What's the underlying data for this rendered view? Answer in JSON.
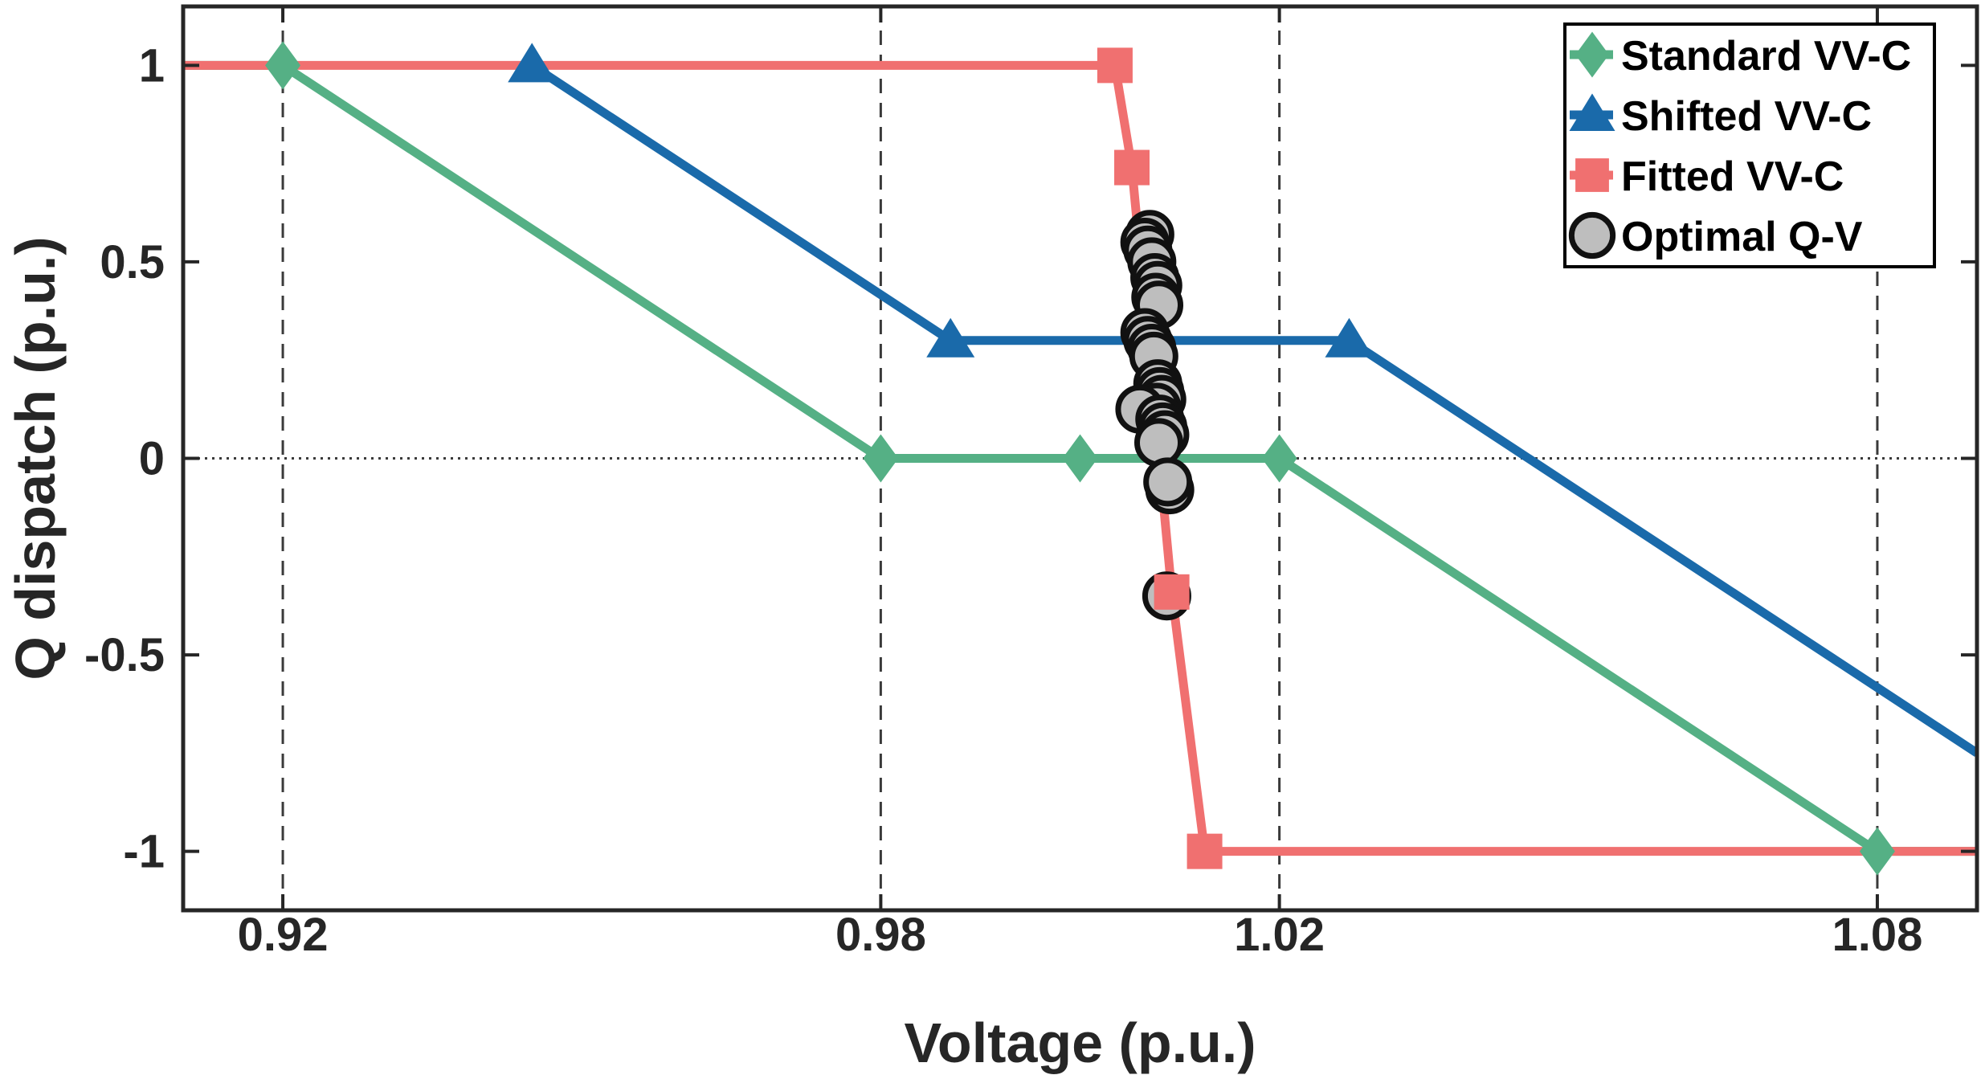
{
  "chart_data": {
    "type": "line",
    "xlabel": "Voltage (p.u.)",
    "ylabel": "Q dispatch (p.u.)",
    "xlim": [
      0.91,
      1.09
    ],
    "ylim": [
      -1.15,
      1.15
    ],
    "xticks": [
      0.92,
      0.98,
      1.02,
      1.08
    ],
    "xtick_labels": [
      "0.92",
      "0.98",
      "1.02",
      "1.08"
    ],
    "yticks": [
      -1,
      -0.5,
      0,
      0.5,
      1
    ],
    "ytick_labels": [
      "-1",
      "-0.5",
      "0",
      "0.5",
      "1"
    ],
    "grid": "vertical dashed at x ticks",
    "zero_line": "dotted at y=0",
    "legend_position": "top-right",
    "series": [
      {
        "name": "Standard VV-C",
        "color": "#55B085",
        "marker": "diamond",
        "points": [
          [
            0.91,
            1.0
          ],
          [
            0.92,
            1.0
          ],
          [
            0.98,
            0.0
          ],
          [
            1.0,
            0.0
          ],
          [
            1.02,
            0.0
          ],
          [
            1.08,
            -1.0
          ],
          [
            1.09,
            -1.0
          ]
        ],
        "marker_points": [
          [
            0.92,
            1.0
          ],
          [
            0.98,
            0.0
          ],
          [
            1.0,
            0.0
          ],
          [
            1.02,
            0.0
          ],
          [
            1.08,
            -1.0
          ]
        ]
      },
      {
        "name": "Shifted VV-C",
        "color": "#1A6AAA",
        "marker": "triangle",
        "points": [
          [
            0.945,
            1.0
          ],
          [
            0.987,
            0.3
          ],
          [
            1.027,
            0.3
          ],
          [
            1.09,
            -0.75
          ]
        ],
        "marker_points": [
          [
            0.945,
            1.0
          ],
          [
            0.987,
            0.3
          ],
          [
            1.027,
            0.3
          ]
        ]
      },
      {
        "name": "Fitted VV-C",
        "color": "#F07070",
        "marker": "square",
        "points": [
          [
            0.91,
            1.0
          ],
          [
            1.0035,
            1.0
          ],
          [
            1.0052,
            0.74
          ],
          [
            1.0092,
            -0.34
          ],
          [
            1.0125,
            -1.0
          ],
          [
            1.09,
            -1.0
          ]
        ],
        "marker_points": [
          [
            1.0035,
            1.0
          ],
          [
            1.0052,
            0.74
          ],
          [
            1.0092,
            -0.34
          ],
          [
            1.0125,
            -1.0
          ]
        ]
      },
      {
        "name": "Optimal Q-V",
        "color": "#BEBEBE",
        "marker": "circle",
        "points": [
          [
            1.007,
            0.57
          ],
          [
            1.0065,
            0.55
          ],
          [
            1.0068,
            0.53
          ],
          [
            1.0072,
            0.5
          ],
          [
            1.0075,
            0.46
          ],
          [
            1.0078,
            0.44
          ],
          [
            1.0076,
            0.41
          ],
          [
            1.0079,
            0.39
          ],
          [
            1.0065,
            0.32
          ],
          [
            1.0068,
            0.3
          ],
          [
            1.0072,
            0.28
          ],
          [
            1.0074,
            0.26
          ],
          [
            1.0078,
            0.19
          ],
          [
            1.008,
            0.17
          ],
          [
            1.0082,
            0.15
          ],
          [
            1.0077,
            0.13
          ],
          [
            1.006,
            0.125
          ],
          [
            1.008,
            0.1
          ],
          [
            1.0083,
            0.08
          ],
          [
            1.0085,
            0.06
          ],
          [
            1.0079,
            0.04
          ],
          [
            1.009,
            -0.08
          ],
          [
            1.0088,
            -0.06
          ],
          [
            1.0087,
            -0.35
          ]
        ]
      }
    ]
  }
}
